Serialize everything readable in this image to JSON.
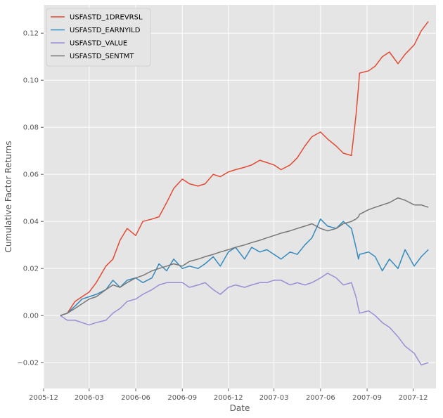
{
  "chart_data": {
    "type": "line",
    "title": "",
    "xlabel": "Date",
    "ylabel": "Cumulative Factor Returns",
    "xlim": [
      "2005-12-01",
      "2008-01-15"
    ],
    "ylim": [
      -0.031,
      0.132
    ],
    "grid": true,
    "legend_position": "top-left",
    "x_ticks": [
      "2005-12",
      "2006-03",
      "2006-06",
      "2006-09",
      "2006-12",
      "2007-03",
      "2007-06",
      "2007-09",
      "2007-12"
    ],
    "y_ticks": [
      -0.02,
      0.0,
      0.02,
      0.04,
      0.06,
      0.08,
      0.1,
      0.12
    ],
    "y_tick_labels": [
      "−0.02",
      "0.00",
      "0.02",
      "0.04",
      "0.06",
      "0.08",
      "0.10",
      "0.12"
    ],
    "colors": {
      "plot_background": "#e5e5e5",
      "grid": "#ffffff",
      "legend_background": "#e5e5e5"
    },
    "series": [
      {
        "name": "USFASTD_1DREVRSL",
        "color": "#e24a33",
        "x": [
          "2006-01-03",
          "2006-01-17",
          "2006-02-01",
          "2006-02-15",
          "2006-03-01",
          "2006-03-15",
          "2006-04-03",
          "2006-04-17",
          "2006-05-01",
          "2006-05-15",
          "2006-06-01",
          "2006-06-15",
          "2006-07-03",
          "2006-07-17",
          "2006-08-01",
          "2006-08-15",
          "2006-09-01",
          "2006-09-15",
          "2006-10-02",
          "2006-10-16",
          "2006-11-01",
          "2006-11-15",
          "2006-12-01",
          "2006-12-15",
          "2007-01-02",
          "2007-01-16",
          "2007-02-01",
          "2007-02-15",
          "2007-03-01",
          "2007-03-15",
          "2007-04-02",
          "2007-04-16",
          "2007-05-01",
          "2007-05-15",
          "2007-06-01",
          "2007-06-15",
          "2007-07-02",
          "2007-07-16",
          "2007-08-01",
          "2007-08-10",
          "2007-08-15",
          "2007-08-17",
          "2007-09-04",
          "2007-09-17",
          "2007-10-01",
          "2007-10-15",
          "2007-11-01",
          "2007-11-15",
          "2007-12-03",
          "2007-12-17",
          "2007-12-31"
        ],
        "values": [
          0.0,
          0.001,
          0.006,
          0.008,
          0.01,
          0.014,
          0.021,
          0.024,
          0.032,
          0.037,
          0.034,
          0.04,
          0.041,
          0.042,
          0.048,
          0.054,
          0.058,
          0.056,
          0.055,
          0.056,
          0.06,
          0.059,
          0.061,
          0.062,
          0.063,
          0.064,
          0.066,
          0.065,
          0.064,
          0.062,
          0.064,
          0.067,
          0.072,
          0.076,
          0.078,
          0.075,
          0.072,
          0.069,
          0.068,
          0.085,
          0.097,
          0.103,
          0.104,
          0.106,
          0.11,
          0.112,
          0.107,
          0.111,
          0.115,
          0.121,
          0.125
        ]
      },
      {
        "name": "USFASTD_EARNYILD",
        "color": "#348abd",
        "x": [
          "2006-01-03",
          "2006-01-17",
          "2006-02-01",
          "2006-02-15",
          "2006-03-01",
          "2006-03-15",
          "2006-04-03",
          "2006-04-17",
          "2006-05-01",
          "2006-05-15",
          "2006-06-01",
          "2006-06-15",
          "2006-07-03",
          "2006-07-17",
          "2006-08-01",
          "2006-08-15",
          "2006-09-01",
          "2006-09-15",
          "2006-10-02",
          "2006-10-16",
          "2006-11-01",
          "2006-11-15",
          "2006-12-01",
          "2006-12-15",
          "2007-01-02",
          "2007-01-16",
          "2007-02-01",
          "2007-02-15",
          "2007-03-01",
          "2007-03-15",
          "2007-04-02",
          "2007-04-16",
          "2007-05-01",
          "2007-05-15",
          "2007-06-01",
          "2007-06-15",
          "2007-07-02",
          "2007-07-16",
          "2007-08-01",
          "2007-08-10",
          "2007-08-15",
          "2007-08-17",
          "2007-09-04",
          "2007-09-17",
          "2007-10-01",
          "2007-10-15",
          "2007-11-01",
          "2007-11-15",
          "2007-12-03",
          "2007-12-17",
          "2007-12-31"
        ],
        "values": [
          0.0,
          0.001,
          0.004,
          0.007,
          0.008,
          0.009,
          0.011,
          0.015,
          0.012,
          0.015,
          0.016,
          0.014,
          0.016,
          0.022,
          0.019,
          0.024,
          0.02,
          0.021,
          0.02,
          0.022,
          0.025,
          0.021,
          0.027,
          0.029,
          0.024,
          0.029,
          0.027,
          0.028,
          0.026,
          0.024,
          0.027,
          0.026,
          0.03,
          0.033,
          0.041,
          0.038,
          0.037,
          0.04,
          0.037,
          0.029,
          0.024,
          0.026,
          0.027,
          0.025,
          0.019,
          0.024,
          0.02,
          0.028,
          0.021,
          0.025,
          0.028
        ]
      },
      {
        "name": "USFASTD_VALUE",
        "color": "#988ed5",
        "x": [
          "2006-01-03",
          "2006-01-17",
          "2006-02-01",
          "2006-02-15",
          "2006-03-01",
          "2006-03-15",
          "2006-04-03",
          "2006-04-17",
          "2006-05-01",
          "2006-05-15",
          "2006-06-01",
          "2006-06-15",
          "2006-07-03",
          "2006-07-17",
          "2006-08-01",
          "2006-08-15",
          "2006-09-01",
          "2006-09-15",
          "2006-10-02",
          "2006-10-16",
          "2006-11-01",
          "2006-11-15",
          "2006-12-01",
          "2006-12-15",
          "2007-01-02",
          "2007-01-16",
          "2007-02-01",
          "2007-02-15",
          "2007-03-01",
          "2007-03-15",
          "2007-04-02",
          "2007-04-16",
          "2007-05-01",
          "2007-05-15",
          "2007-06-01",
          "2007-06-15",
          "2007-07-02",
          "2007-07-16",
          "2007-08-01",
          "2007-08-10",
          "2007-08-15",
          "2007-08-17",
          "2007-09-04",
          "2007-09-17",
          "2007-10-01",
          "2007-10-15",
          "2007-11-01",
          "2007-11-15",
          "2007-12-03",
          "2007-12-17",
          "2007-12-31"
        ],
        "values": [
          0.0,
          -0.002,
          -0.002,
          -0.003,
          -0.004,
          -0.003,
          -0.002,
          0.001,
          0.003,
          0.006,
          0.007,
          0.009,
          0.011,
          0.013,
          0.014,
          0.014,
          0.014,
          0.012,
          0.013,
          0.014,
          0.011,
          0.009,
          0.012,
          0.013,
          0.012,
          0.013,
          0.014,
          0.014,
          0.015,
          0.015,
          0.013,
          0.014,
          0.013,
          0.014,
          0.016,
          0.018,
          0.016,
          0.013,
          0.014,
          0.008,
          0.003,
          0.001,
          0.002,
          0.0,
          -0.003,
          -0.005,
          -0.009,
          -0.013,
          -0.016,
          -0.021,
          -0.02
        ]
      },
      {
        "name": "USFASTD_SENTMT",
        "color": "#777777",
        "x": [
          "2006-01-03",
          "2006-01-17",
          "2006-02-01",
          "2006-02-15",
          "2006-03-01",
          "2006-03-15",
          "2006-04-03",
          "2006-04-17",
          "2006-05-01",
          "2006-05-15",
          "2006-06-01",
          "2006-06-15",
          "2006-07-03",
          "2006-07-17",
          "2006-08-01",
          "2006-08-15",
          "2006-09-01",
          "2006-09-15",
          "2006-10-02",
          "2006-10-16",
          "2006-11-01",
          "2006-11-15",
          "2006-12-01",
          "2006-12-15",
          "2007-01-02",
          "2007-01-16",
          "2007-02-01",
          "2007-02-15",
          "2007-03-01",
          "2007-03-15",
          "2007-04-02",
          "2007-04-16",
          "2007-05-01",
          "2007-05-15",
          "2007-06-01",
          "2007-06-15",
          "2007-07-02",
          "2007-07-16",
          "2007-08-01",
          "2007-08-10",
          "2007-08-15",
          "2007-08-17",
          "2007-09-04",
          "2007-09-17",
          "2007-10-01",
          "2007-10-15",
          "2007-11-01",
          "2007-11-15",
          "2007-12-03",
          "2007-12-17",
          "2007-12-31"
        ],
        "values": [
          0.0,
          0.001,
          0.003,
          0.005,
          0.007,
          0.008,
          0.011,
          0.013,
          0.012,
          0.014,
          0.016,
          0.017,
          0.019,
          0.02,
          0.021,
          0.022,
          0.021,
          0.023,
          0.024,
          0.025,
          0.026,
          0.027,
          0.028,
          0.029,
          0.03,
          0.031,
          0.032,
          0.033,
          0.034,
          0.035,
          0.036,
          0.037,
          0.038,
          0.039,
          0.037,
          0.036,
          0.037,
          0.039,
          0.04,
          0.041,
          0.042,
          0.043,
          0.045,
          0.046,
          0.047,
          0.048,
          0.05,
          0.049,
          0.047,
          0.047,
          0.046
        ]
      }
    ]
  }
}
